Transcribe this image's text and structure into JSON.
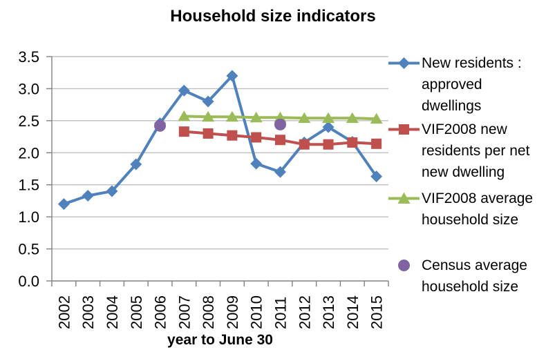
{
  "chart_data": {
    "type": "line",
    "title": "Household size indicators",
    "xlabel": "year to June 30",
    "ylabel": "",
    "categories": [
      "2002",
      "2003",
      "2004",
      "2005",
      "2006",
      "2007",
      "2008",
      "2009",
      "2010",
      "2011",
      "2012",
      "2013",
      "2014",
      "2015"
    ],
    "ylim": [
      0,
      3.5
    ],
    "y_ticks": [
      "3.5",
      "3.0",
      "2.5",
      "2.0",
      "1.5",
      "1.0",
      "0.5",
      "0.0"
    ],
    "grid": true,
    "grid_color": "#BEBEBE",
    "axis_color": "#808080",
    "legend_position": "right",
    "series": [
      {
        "name": "New residents : approved dwellings",
        "marker": "diamond",
        "color": "#4F81BD",
        "line": true,
        "values": [
          1.2,
          1.33,
          1.4,
          1.82,
          2.46,
          2.97,
          2.8,
          3.2,
          1.83,
          1.7,
          2.16,
          2.4,
          2.17,
          1.63
        ]
      },
      {
        "name": "VIF2008 new residents per net new dwelling",
        "marker": "square",
        "color": "#C0504D",
        "line": true,
        "values": [
          null,
          null,
          null,
          null,
          null,
          2.33,
          2.3,
          2.27,
          2.24,
          2.2,
          2.13,
          2.13,
          2.16,
          2.14
        ]
      },
      {
        "name": "VIF2008 average household size",
        "marker": "triangle",
        "color": "#9BBB59",
        "line": true,
        "values": [
          null,
          null,
          null,
          null,
          null,
          2.57,
          2.56,
          2.56,
          2.55,
          2.55,
          2.54,
          2.54,
          2.54,
          2.53
        ]
      },
      {
        "name": "Census average household size",
        "marker": "circle",
        "color": "#8064A2",
        "line": false,
        "values": [
          null,
          null,
          null,
          null,
          2.42,
          null,
          null,
          null,
          null,
          2.44,
          null,
          null,
          null,
          null
        ]
      }
    ]
  },
  "legend": {
    "items": [
      {
        "lines": [
          "New residents :",
          "approved",
          "dwellings"
        ]
      },
      {
        "lines": [
          "VIF2008 new",
          "residents per net",
          "new dwelling"
        ]
      },
      {
        "lines": [
          "VIF2008 average",
          "household size"
        ]
      },
      {
        "lines": [
          "Census average",
          "household size"
        ]
      }
    ]
  }
}
